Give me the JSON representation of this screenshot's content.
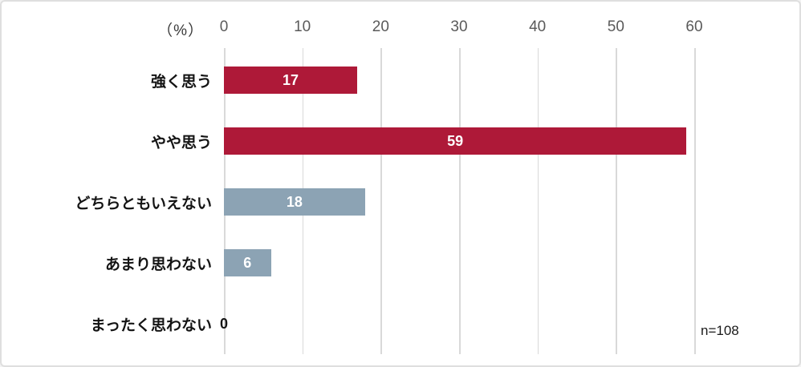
{
  "frame": {
    "background_color": "#ffffff",
    "border_color": "#dfdfdf"
  },
  "chart_data": {
    "type": "bar",
    "orientation": "horizontal",
    "title": "",
    "unit_label": "（%）",
    "categories": [
      "強く思う",
      "やや思う",
      "どちらともいえない",
      "あまり思わない",
      "まったく思わない"
    ],
    "values": [
      17,
      59,
      18,
      6,
      0
    ],
    "bar_colors": [
      "#ae1938",
      "#ae1938",
      "#8ca3b4",
      "#8ca3b4",
      "#8ca3b4"
    ],
    "accent_colors": {
      "agree_red": "#ae1938",
      "neutral_gray_blue": "#8ca3b4",
      "gridline": "#d9d9d9",
      "tick_text": "#5a5a5a"
    },
    "x_ticks": [
      0,
      10,
      20,
      30,
      40,
      50,
      60
    ],
    "xlim": [
      0,
      60
    ],
    "grid": true,
    "legend": false,
    "value_labels": "inside-center, white bold; zero value shown in black at axis",
    "annotation": "n=108"
  }
}
